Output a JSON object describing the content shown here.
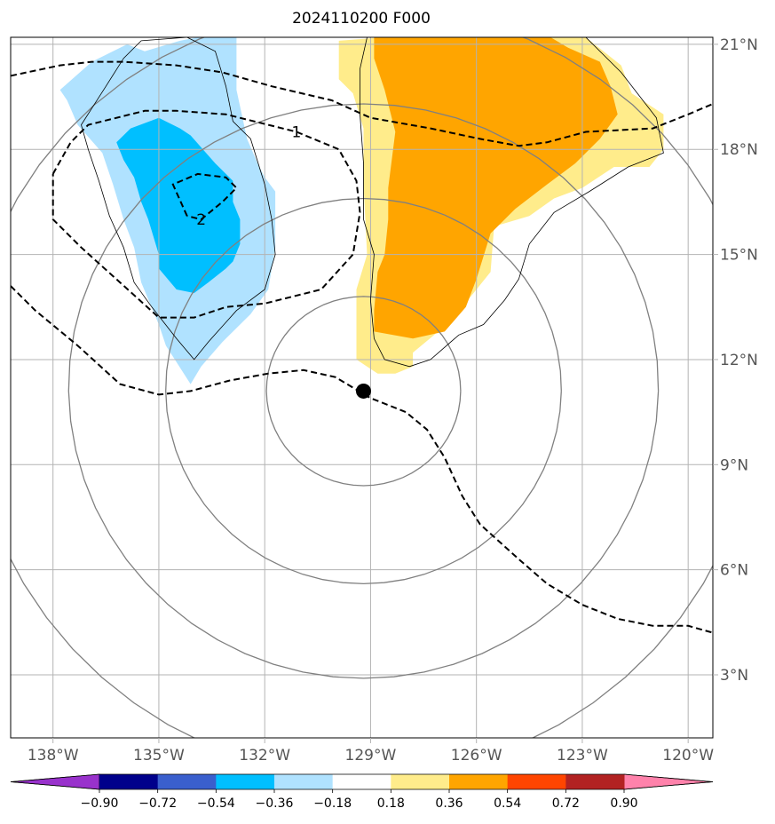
{
  "chart_data": {
    "type": "heatmap",
    "title": "2024110200 F000",
    "projection": "map, lon/lat grid",
    "xlim": [
      -139.2,
      -119.3
    ],
    "ylim": [
      1.2,
      21.2
    ],
    "grid": true,
    "x_ticks": [
      {
        "value": -138,
        "label": "138°W"
      },
      {
        "value": -135,
        "label": "135°W"
      },
      {
        "value": -132,
        "label": "132°W"
      },
      {
        "value": -129,
        "label": "129°W"
      },
      {
        "value": -126,
        "label": "126°W"
      },
      {
        "value": -123,
        "label": "123°W"
      },
      {
        "value": -120,
        "label": "120°W"
      }
    ],
    "y_ticks": [
      {
        "value": 3,
        "label": "3°N"
      },
      {
        "value": 6,
        "label": "6°N"
      },
      {
        "value": 9,
        "label": "9°N"
      },
      {
        "value": 12,
        "label": "12°N"
      },
      {
        "value": 15,
        "label": "15°N"
      },
      {
        "value": 18,
        "label": "18°N"
      },
      {
        "value": 21,
        "label": "21°N"
      }
    ],
    "colorbar": {
      "extend": "both",
      "levels": [
        -0.9,
        -0.72,
        -0.54,
        -0.36,
        -0.18,
        0.18,
        0.36,
        0.54,
        0.72,
        0.9
      ],
      "tick_labels": [
        "−0.90",
        "−0.72",
        "−0.54",
        "−0.36",
        "−0.18",
        "0.18",
        "0.36",
        "0.54",
        "0.72",
        "0.90"
      ],
      "colors": [
        "#9932cc",
        "#00008b",
        "#3a5fcd",
        "#00bfff",
        "#b0e2ff",
        "#ffffff",
        "#ffec8b",
        "#ffa500",
        "#ff4500",
        "#b22222",
        "#ff82ab"
      ]
    },
    "center": {
      "lon": -129.2,
      "lat": 11.1
    },
    "range_rings_deg": [
      2.7,
      5.5,
      8.2,
      11
    ],
    "shaded_regions": [
      {
        "level": "-0.36 to -0.18",
        "color": "#b0e2ff",
        "polygon": [
          [
            -135.4,
            20.8
          ],
          [
            -134.4,
            21.1
          ],
          [
            -133.9,
            21.2
          ],
          [
            -132.8,
            21.2
          ],
          [
            -132.8,
            19.7
          ],
          [
            -132.5,
            18.3
          ],
          [
            -132.2,
            17.6
          ],
          [
            -132.0,
            17.2
          ],
          [
            -131.7,
            16.8
          ],
          [
            -131.7,
            15.2
          ],
          [
            -131.9,
            14.0
          ],
          [
            -132.4,
            13.3
          ],
          [
            -133.2,
            12.5
          ],
          [
            -133.8,
            11.8
          ],
          [
            -134.1,
            11.3
          ],
          [
            -134.8,
            12.4
          ],
          [
            -135.0,
            13.0
          ],
          [
            -135.5,
            14.2
          ],
          [
            -135.7,
            15.2
          ],
          [
            -136.0,
            16.0
          ],
          [
            -136.3,
            17.0
          ],
          [
            -136.6,
            17.9
          ],
          [
            -137.3,
            18.7
          ],
          [
            -137.6,
            19.4
          ],
          [
            -137.8,
            19.7
          ],
          [
            -136.9,
            20.5
          ],
          [
            -135.9,
            21.0
          ]
        ]
      },
      {
        "level": "-0.54 to -0.36",
        "color": "#00bfff",
        "polygon": [
          [
            -135.0,
            18.9
          ],
          [
            -134.4,
            18.6
          ],
          [
            -134.1,
            18.4
          ],
          [
            -133.4,
            17.6
          ],
          [
            -132.9,
            17.1
          ],
          [
            -132.9,
            16.5
          ],
          [
            -132.7,
            16.0
          ],
          [
            -132.7,
            15.3
          ],
          [
            -132.9,
            14.8
          ],
          [
            -133.1,
            14.6
          ],
          [
            -133.6,
            14.2
          ],
          [
            -134.0,
            13.9
          ],
          [
            -134.5,
            14.0
          ],
          [
            -135.0,
            14.6
          ],
          [
            -135.0,
            15.0
          ],
          [
            -135.3,
            16.0
          ],
          [
            -135.5,
            16.5
          ],
          [
            -135.7,
            17.2
          ],
          [
            -136.0,
            17.7
          ],
          [
            -136.2,
            18.2
          ],
          [
            -135.8,
            18.6
          ]
        ]
      },
      {
        "level": "0.18 to 0.36",
        "color": "#ffec8b",
        "polygon": [
          [
            -128.6,
            21.2
          ],
          [
            -122.9,
            21.2
          ],
          [
            -121.9,
            20.4
          ],
          [
            -121.6,
            19.6
          ],
          [
            -120.7,
            19.0
          ],
          [
            -120.7,
            18.0
          ],
          [
            -121.1,
            17.5
          ],
          [
            -122.1,
            17.5
          ],
          [
            -123.0,
            16.9
          ],
          [
            -123.8,
            16.6
          ],
          [
            -124.5,
            16.1
          ],
          [
            -125.5,
            15.8
          ],
          [
            -125.6,
            14.5
          ],
          [
            -126.4,
            13.5
          ],
          [
            -127.2,
            12.7
          ],
          [
            -127.8,
            12.2
          ],
          [
            -127.8,
            11.8
          ],
          [
            -128.3,
            11.6
          ],
          [
            -128.8,
            11.6
          ],
          [
            -129.4,
            12.0
          ],
          [
            -129.4,
            12.8
          ],
          [
            -129.4,
            14.0
          ],
          [
            -129.1,
            15.0
          ],
          [
            -129.2,
            17.0
          ],
          [
            -129.2,
            18.6
          ],
          [
            -129.5,
            19.6
          ],
          [
            -129.9,
            20.0
          ],
          [
            -129.9,
            21.1
          ]
        ]
      },
      {
        "level": "0.36 to 0.54",
        "color": "#ffa500",
        "polygon": [
          [
            -128.2,
            21.2
          ],
          [
            -123.9,
            21.2
          ],
          [
            -123.4,
            20.9
          ],
          [
            -122.5,
            20.5
          ],
          [
            -122.2,
            19.8
          ],
          [
            -122.0,
            19.0
          ],
          [
            -122.5,
            18.3
          ],
          [
            -123.2,
            17.6
          ],
          [
            -124.0,
            17.0
          ],
          [
            -124.9,
            16.3
          ],
          [
            -125.6,
            15.6
          ],
          [
            -126.0,
            14.3
          ],
          [
            -126.3,
            13.5
          ],
          [
            -126.9,
            12.8
          ],
          [
            -127.8,
            12.6
          ],
          [
            -128.9,
            12.8
          ],
          [
            -128.9,
            13.4
          ],
          [
            -128.8,
            14.5
          ],
          [
            -128.6,
            15.0
          ],
          [
            -128.5,
            16.0
          ],
          [
            -128.5,
            16.9
          ],
          [
            -128.3,
            18.5
          ],
          [
            -128.6,
            19.7
          ],
          [
            -128.9,
            20.6
          ],
          [
            -128.9,
            21.2
          ]
        ]
      }
    ],
    "contours_dashed": [
      {
        "label": "",
        "points": [
          [
            -139.2,
            20.1
          ],
          [
            -137.8,
            20.4
          ],
          [
            -136.9,
            20.5
          ],
          [
            -136.0,
            20.5
          ],
          [
            -134.5,
            20.4
          ],
          [
            -133.2,
            20.2
          ],
          [
            -131.8,
            19.8
          ],
          [
            -130.1,
            19.4
          ],
          [
            -129.0,
            18.9
          ],
          [
            -127.3,
            18.6
          ],
          [
            -125.9,
            18.3
          ],
          [
            -124.8,
            18.1
          ],
          [
            -124.0,
            18.2
          ],
          [
            -122.9,
            18.5
          ],
          [
            -121.0,
            18.6
          ],
          [
            -120.0,
            19.0
          ],
          [
            -119.3,
            19.3
          ]
        ]
      },
      {
        "label": "1",
        "label_at": [
          -131.1,
          18.5
        ],
        "points": [
          [
            -138.0,
            17.3
          ],
          [
            -137.5,
            18.2
          ],
          [
            -137.0,
            18.7
          ],
          [
            -135.4,
            19.1
          ],
          [
            -134.5,
            19.1
          ],
          [
            -133.1,
            19.0
          ],
          [
            -131.9,
            18.7
          ],
          [
            -131.1,
            18.5
          ],
          [
            -129.9,
            18.0
          ],
          [
            -129.4,
            17.1
          ],
          [
            -129.3,
            16.2
          ],
          [
            -129.5,
            15.0
          ],
          [
            -130.4,
            14.0
          ],
          [
            -132.0,
            13.6
          ],
          [
            -133.1,
            13.5
          ],
          [
            -134.0,
            13.2
          ],
          [
            -135.0,
            13.2
          ],
          [
            -136.1,
            14.2
          ],
          [
            -137.2,
            15.2
          ],
          [
            -138.0,
            16.0
          ],
          [
            -138.0,
            17.3
          ]
        ]
      },
      {
        "label": "2",
        "label_at": [
          -133.8,
          16.0
        ],
        "points": [
          [
            -134.2,
            16.1
          ],
          [
            -134.6,
            17.0
          ],
          [
            -133.9,
            17.3
          ],
          [
            -133.1,
            17.2
          ],
          [
            -132.8,
            16.9
          ],
          [
            -133.2,
            16.5
          ],
          [
            -133.8,
            16.0
          ],
          [
            -134.2,
            16.1
          ]
        ]
      },
      {
        "label": "",
        "points": [
          [
            -139.2,
            14.1
          ],
          [
            -138.5,
            13.4
          ],
          [
            -137.3,
            12.4
          ],
          [
            -136.1,
            11.3
          ],
          [
            -135.0,
            11.0
          ],
          [
            -134.1,
            11.1
          ],
          [
            -133.0,
            11.4
          ],
          [
            -131.9,
            11.6
          ],
          [
            -130.9,
            11.7
          ],
          [
            -130.0,
            11.5
          ],
          [
            -129.0,
            10.9
          ],
          [
            -128.0,
            10.5
          ],
          [
            -127.4,
            10.0
          ],
          [
            -126.9,
            9.2
          ],
          [
            -126.4,
            8.1
          ],
          [
            -125.9,
            7.3
          ],
          [
            -124.8,
            6.3
          ],
          [
            -124.0,
            5.6
          ],
          [
            -123.0,
            5.0
          ],
          [
            -122.0,
            4.6
          ],
          [
            -121.0,
            4.4
          ],
          [
            -120.0,
            4.4
          ],
          [
            -119.3,
            4.2
          ]
        ]
      }
    ],
    "thin_outlines": [
      [
        [
          -135.5,
          21.1
        ],
        [
          -134.2,
          21.2
        ],
        [
          -133.4,
          20.8
        ],
        [
          -133.1,
          19.8
        ],
        [
          -132.9,
          18.8
        ],
        [
          -132.4,
          18.3
        ],
        [
          -132.0,
          17.0
        ],
        [
          -131.8,
          16.0
        ],
        [
          -131.7,
          15.0
        ],
        [
          -132.0,
          14.0
        ],
        [
          -132.8,
          13.4
        ],
        [
          -133.6,
          12.5
        ],
        [
          -134.0,
          12.0
        ],
        [
          -134.5,
          12.6
        ],
        [
          -135.2,
          13.5
        ],
        [
          -135.7,
          14.2
        ],
        [
          -136.0,
          15.2
        ],
        [
          -136.4,
          16.1
        ],
        [
          -136.7,
          17.1
        ],
        [
          -137.0,
          18.0
        ],
        [
          -137.2,
          18.7
        ],
        [
          -136.5,
          19.8
        ],
        [
          -136.0,
          20.6
        ],
        [
          -135.5,
          21.1
        ]
      ],
      [
        [
          -129.1,
          21.2
        ],
        [
          -129.3,
          20.3
        ],
        [
          -129.3,
          19.0
        ],
        [
          -129.2,
          17.6
        ],
        [
          -129.2,
          16.0
        ],
        [
          -128.9,
          15.0
        ],
        [
          -129.0,
          13.7
        ],
        [
          -128.9,
          12.6
        ],
        [
          -128.6,
          12.0
        ],
        [
          -127.9,
          11.8
        ],
        [
          -127.3,
          12.0
        ],
        [
          -126.5,
          12.7
        ],
        [
          -125.8,
          13.0
        ],
        [
          -125.2,
          13.7
        ],
        [
          -124.8,
          14.3
        ],
        [
          -124.5,
          15.3
        ],
        [
          -123.8,
          16.2
        ],
        [
          -122.8,
          16.8
        ],
        [
          -121.7,
          17.5
        ],
        [
          -120.7,
          17.9
        ],
        [
          -120.9,
          18.9
        ],
        [
          -121.9,
          20.2
        ],
        [
          -122.9,
          21.2
        ]
      ]
    ],
    "storm_center_marker": {
      "lon": -129.2,
      "lat": 11.1
    }
  }
}
